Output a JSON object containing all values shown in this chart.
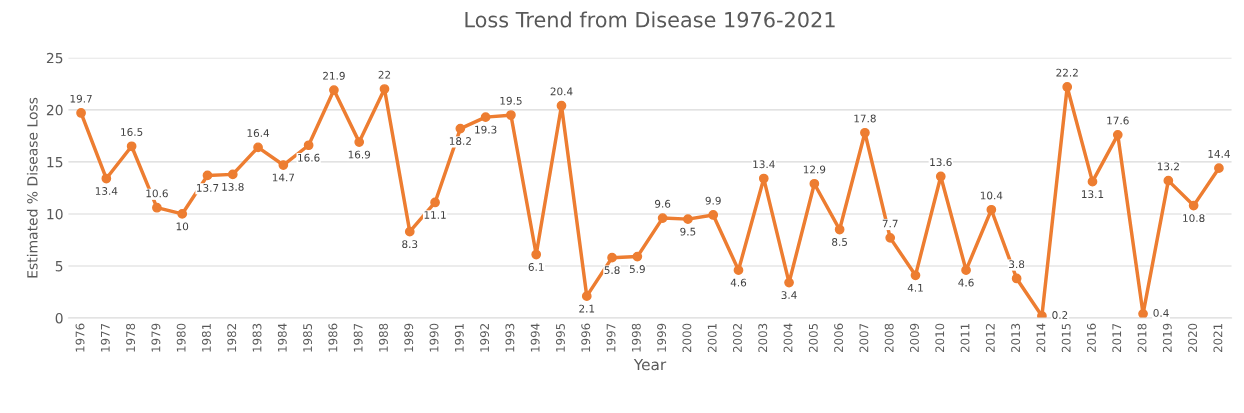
{
  "chart_data": {
    "type": "line",
    "title": "Loss Trend from Disease 1976-2021",
    "xlabel": "Year",
    "ylabel": "Estimated % Disease Loss",
    "categories": [
      "1976",
      "1977",
      "1978",
      "1979",
      "1980",
      "1981",
      "1982",
      "1983",
      "1984",
      "1985",
      "1986",
      "1987",
      "1988",
      "1989",
      "1990",
      "1991",
      "1992",
      "1993",
      "1994",
      "1995",
      "1996",
      "1997",
      "1998",
      "1999",
      "2000",
      "2001",
      "2002",
      "2003",
      "2004",
      "2005",
      "2006",
      "2007",
      "2008",
      "2009",
      "2010",
      "2011",
      "2012",
      "2013",
      "2014",
      "2015",
      "2016",
      "2017",
      "2018",
      "2019",
      "2020",
      "2021"
    ],
    "series": [
      {
        "color": "#ed7d31",
        "values": [
          19.7,
          13.4,
          16.5,
          10.6,
          10,
          13.7,
          13.8,
          16.4,
          14.7,
          16.6,
          21.9,
          16.9,
          22,
          8.3,
          11.1,
          18.2,
          19.3,
          19.5,
          6.1,
          20.4,
          2.1,
          5.8,
          5.9,
          9.6,
          9.5,
          9.9,
          4.6,
          13.4,
          3.4,
          12.9,
          8.5,
          17.8,
          7.7,
          4.1,
          13.6,
          4.6,
          10.4,
          3.8,
          0.2,
          22.2,
          13.1,
          17.6,
          0.4,
          13.2,
          10.8,
          14.4
        ]
      }
    ],
    "ylim": [
      0,
      25
    ],
    "yticks": [
      0,
      5,
      10,
      15,
      20,
      25
    ],
    "grid": "y",
    "legend": false,
    "marker": "circle",
    "line_style": "solid",
    "data_labels": true
  }
}
